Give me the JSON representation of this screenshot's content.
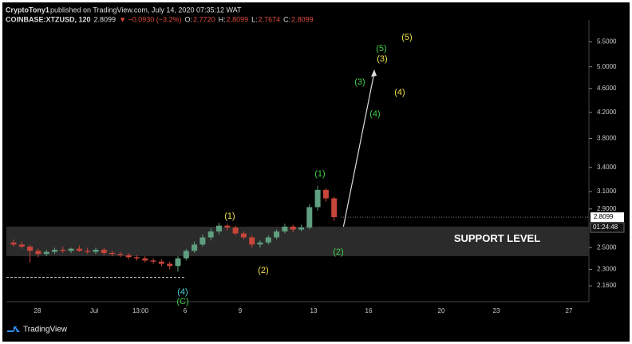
{
  "chart_data": {
    "type": "candlestick",
    "header": {
      "author": "CryptoTony1",
      "published": "published on TradingView.com, July 14, 2020 07:35:12 WAT",
      "symbol": "COINBASE:XTZUSD, 120",
      "price": "2.8099",
      "change": "▼ −0.0930 (−3.2%)",
      "o_label": "O:",
      "o": "2.7720",
      "h_label": "H:",
      "h": "2.8099",
      "l_label": "L:",
      "l": "2.7674",
      "c_label": "C:",
      "c": "2.8099"
    },
    "open": [
      2.55,
      2.53,
      2.51,
      2.47,
      2.44,
      2.46,
      2.48,
      2.47,
      2.49,
      2.47,
      2.46,
      2.48,
      2.45,
      2.44,
      2.43,
      2.41,
      2.4,
      2.38,
      2.37,
      2.35,
      2.33,
      2.4,
      2.47,
      2.53,
      2.6,
      2.66,
      2.72,
      2.7,
      2.64,
      2.6,
      2.53,
      2.55,
      2.6,
      2.66,
      2.71,
      2.68,
      2.7,
      2.92,
      3.12,
      3.02
    ],
    "high": [
      2.58,
      2.56,
      2.53,
      2.49,
      2.48,
      2.5,
      2.51,
      2.5,
      2.52,
      2.5,
      2.5,
      2.5,
      2.47,
      2.46,
      2.45,
      2.43,
      2.42,
      2.4,
      2.39,
      2.37,
      2.42,
      2.49,
      2.56,
      2.63,
      2.69,
      2.75,
      2.74,
      2.72,
      2.66,
      2.62,
      2.57,
      2.62,
      2.68,
      2.74,
      2.73,
      2.73,
      2.95,
      3.17,
      3.14,
      3.04
    ],
    "low": [
      2.51,
      2.49,
      2.36,
      2.41,
      2.42,
      2.44,
      2.45,
      2.45,
      2.46,
      2.44,
      2.44,
      2.43,
      2.42,
      2.41,
      2.39,
      2.38,
      2.36,
      2.35,
      2.33,
      2.3,
      2.28,
      2.38,
      2.45,
      2.51,
      2.57,
      2.63,
      2.67,
      2.62,
      2.58,
      2.5,
      2.5,
      2.53,
      2.58,
      2.64,
      2.65,
      2.66,
      2.68,
      2.88,
      2.98,
      2.77
    ],
    "close": [
      2.53,
      2.51,
      2.47,
      2.44,
      2.46,
      2.48,
      2.47,
      2.49,
      2.47,
      2.46,
      2.48,
      2.45,
      2.44,
      2.43,
      2.41,
      2.4,
      2.38,
      2.37,
      2.35,
      2.33,
      2.4,
      2.47,
      2.53,
      2.6,
      2.66,
      2.72,
      2.7,
      2.64,
      2.6,
      2.53,
      2.55,
      2.6,
      2.66,
      2.71,
      2.68,
      2.7,
      2.92,
      3.12,
      3.02,
      2.81
    ],
    "up_color": "#5f9e7f",
    "down_color": "#c8453a",
    "log_scale": true,
    "ylim": [
      2.02,
      5.75
    ],
    "yticks": [
      {
        "value": 5.5,
        "label": "5.5000"
      },
      {
        "value": 5.0,
        "label": "5.0000"
      },
      {
        "value": 4.6,
        "label": "4.6000"
      },
      {
        "value": 4.2,
        "label": "4.2000"
      },
      {
        "value": 3.8,
        "label": "3.8000"
      },
      {
        "value": 3.4,
        "label": "3.4000"
      },
      {
        "value": 3.1,
        "label": "3.1000"
      },
      {
        "value": 2.9,
        "label": "2.9000"
      },
      {
        "value": 2.5,
        "label": "2.5000"
      },
      {
        "value": 2.3,
        "label": "2.3000"
      },
      {
        "value": 2.16,
        "label": "2.1600"
      }
    ],
    "xtick_labels": [
      "28",
      "Jul",
      "13:00",
      "6",
      "9",
      "13",
      "16",
      "20",
      "23",
      "27"
    ],
    "last_price": {
      "value": 2.8099,
      "label": "2.8099"
    },
    "countdown": "01:24:48",
    "support_zone": [
      2.42,
      2.71
    ],
    "support_label": "SUPPORT LEVEL",
    "dashed_level": 2.23,
    "annotations": [
      {
        "text": "(5)",
        "color": "#f2e14c"
      },
      {
        "text": "(5)",
        "color": "#3fcf4a"
      },
      {
        "text": "(3)",
        "color": "#f2e14c"
      },
      {
        "text": "(3)",
        "color": "#3fcf4a"
      },
      {
        "text": "(4)",
        "color": "#f2e14c"
      },
      {
        "text": "(4)",
        "color": "#3fcf4a"
      },
      {
        "text": "(1)",
        "color": "#3fcf4a"
      },
      {
        "text": "(1)",
        "color": "#f2e14c"
      },
      {
        "text": "(2)",
        "color": "#f2e14c"
      },
      {
        "text": "(2)",
        "color": "#3fcf4a"
      },
      {
        "text": "(4)",
        "color": "#4fd3d8"
      },
      {
        "text": "(C)",
        "color": "#3fcf4a"
      }
    ],
    "footer": "TradingView"
  }
}
